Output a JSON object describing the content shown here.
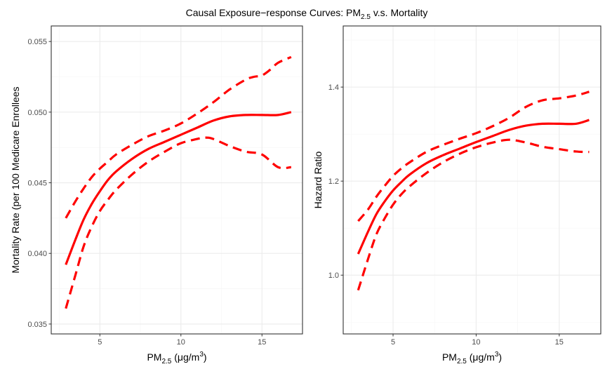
{
  "title": {
    "main": "Causal Exposure−response Curves: PM",
    "sub": "2.5",
    "tail": " v.s. Mortality"
  },
  "colors": {
    "curve": "#ff0000",
    "grid_major": "#ebebeb",
    "grid_minor": "#f5f5f5",
    "border": "#333333"
  },
  "chart_data": [
    {
      "type": "line",
      "xlabel": {
        "main": "PM",
        "sub": "2.5",
        "unit_open": " (μg/m",
        "sup": "3",
        "unit_close": ")"
      },
      "ylabel": "Mortality Rate (per 100 Medicare Enrollees",
      "xlim": [
        2.0,
        17.5
      ],
      "ylim": [
        0.0343,
        0.0561
      ],
      "x_ticks": [
        5,
        10,
        15
      ],
      "x_tick_labels": [
        "5",
        "10",
        "15"
      ],
      "y_ticks": [
        0.035,
        0.04,
        0.045,
        0.05,
        0.055
      ],
      "y_tick_labels": [
        "0.035",
        "0.040",
        "0.045",
        "0.050",
        "0.055"
      ],
      "grid": true,
      "series": [
        {
          "role": "estimate",
          "style": "solid",
          "x": [
            2.9,
            3.5,
            4.0,
            4.5,
            5.0,
            5.5,
            6.0,
            7.0,
            8.0,
            9.0,
            10.0,
            11.0,
            12.0,
            13.0,
            14.0,
            15.0,
            16.0,
            16.8
          ],
          "y": [
            0.0392,
            0.041,
            0.0424,
            0.0435,
            0.0444,
            0.0452,
            0.0458,
            0.0467,
            0.0474,
            0.0479,
            0.0484,
            0.0489,
            0.0494,
            0.0497,
            0.0498,
            0.0498,
            0.0498,
            0.05
          ]
        },
        {
          "role": "upper",
          "style": "dashed",
          "x": [
            2.9,
            3.5,
            4.0,
            4.5,
            5.0,
            5.5,
            6.0,
            7.0,
            8.0,
            9.0,
            10.0,
            11.0,
            12.0,
            13.0,
            14.0,
            14.5,
            15.0,
            15.5,
            16.0,
            16.8
          ],
          "y": [
            0.0425,
            0.0437,
            0.0446,
            0.0454,
            0.046,
            0.0465,
            0.047,
            0.0477,
            0.0483,
            0.0487,
            0.0492,
            0.0499,
            0.0507,
            0.0516,
            0.0523,
            0.0525,
            0.0526,
            0.053,
            0.0535,
            0.0539
          ]
        },
        {
          "role": "lower",
          "style": "dashed",
          "x": [
            2.9,
            3.5,
            4.0,
            4.5,
            5.0,
            5.5,
            6.0,
            7.0,
            8.0,
            9.0,
            10.0,
            11.0,
            11.5,
            12.0,
            13.0,
            14.0,
            15.0,
            16.0,
            16.8
          ],
          "y": [
            0.0361,
            0.0385,
            0.0405,
            0.0419,
            0.043,
            0.0438,
            0.0445,
            0.0456,
            0.0465,
            0.0472,
            0.0478,
            0.0481,
            0.0482,
            0.0481,
            0.0476,
            0.0472,
            0.047,
            0.0461,
            0.0461
          ]
        }
      ]
    },
    {
      "type": "line",
      "xlabel": {
        "main": "PM",
        "sub": "2.5",
        "unit_open": " (μg/m",
        "sup": "3",
        "unit_close": ")"
      },
      "ylabel": "Hazard Ratio",
      "xlim": [
        2.0,
        17.5
      ],
      "ylim": [
        0.875,
        1.53
      ],
      "x_ticks": [
        5,
        10,
        15
      ],
      "x_tick_labels": [
        "5",
        "10",
        "15"
      ],
      "y_ticks": [
        1.0,
        1.2,
        1.4
      ],
      "y_tick_labels": [
        "1.0",
        "1.2",
        "1.4"
      ],
      "grid": true,
      "series": [
        {
          "role": "estimate",
          "style": "solid",
          "x": [
            2.9,
            3.5,
            4.0,
            4.5,
            5.0,
            5.5,
            6.0,
            7.0,
            8.0,
            9.0,
            10.0,
            11.0,
            12.0,
            13.0,
            14.0,
            15.0,
            16.0,
            16.8
          ],
          "y": [
            1.045,
            1.093,
            1.13,
            1.157,
            1.18,
            1.198,
            1.214,
            1.238,
            1.255,
            1.269,
            1.283,
            1.296,
            1.309,
            1.318,
            1.322,
            1.322,
            1.322,
            1.33
          ]
        },
        {
          "role": "upper",
          "style": "dashed",
          "x": [
            2.9,
            3.5,
            4.0,
            4.5,
            5.0,
            5.5,
            6.0,
            7.0,
            8.0,
            9.0,
            10.0,
            11.0,
            12.0,
            13.0,
            14.0,
            15.0,
            16.0,
            16.8
          ],
          "y": [
            1.115,
            1.14,
            1.167,
            1.19,
            1.211,
            1.227,
            1.24,
            1.262,
            1.277,
            1.29,
            1.302,
            1.317,
            1.335,
            1.358,
            1.372,
            1.376,
            1.382,
            1.39
          ]
        },
        {
          "role": "lower",
          "style": "dashed",
          "x": [
            2.9,
            3.5,
            4.0,
            4.5,
            5.0,
            5.5,
            6.0,
            7.0,
            8.0,
            9.0,
            10.0,
            11.0,
            12.0,
            13.0,
            14.0,
            15.0,
            16.0,
            16.8
          ],
          "y": [
            0.968,
            1.035,
            1.087,
            1.121,
            1.15,
            1.172,
            1.189,
            1.217,
            1.24,
            1.258,
            1.272,
            1.282,
            1.288,
            1.282,
            1.273,
            1.268,
            1.263,
            1.262
          ]
        }
      ]
    }
  ]
}
